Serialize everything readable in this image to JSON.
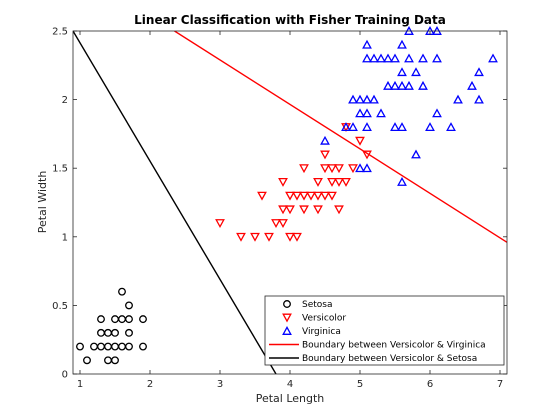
{
  "chart_data": {
    "type": "scatter",
    "title": "Linear Classification with Fisher Training Data",
    "xlabel": "Petal Length",
    "ylabel": "Petal Width",
    "xlim": [
      0.9,
      7.1
    ],
    "ylim": [
      0,
      2.5
    ],
    "xticks": [
      1,
      2,
      3,
      4,
      5,
      6,
      7
    ],
    "yticks": [
      0,
      0.5,
      1,
      1.5,
      2,
      2.5
    ],
    "xtick_labels": [
      "1",
      "2",
      "3",
      "4",
      "5",
      "6",
      "7"
    ],
    "ytick_labels": [
      "0",
      "0.5",
      "1",
      "1.5",
      "2",
      "2.5"
    ],
    "grid": false,
    "legend_position": "bottom-right",
    "series": [
      {
        "name": "Setosa",
        "marker": "circle",
        "color": "#000000",
        "points": [
          [
            1.0,
            0.2
          ],
          [
            1.1,
            0.1
          ],
          [
            1.2,
            0.2
          ],
          [
            1.3,
            0.2
          ],
          [
            1.3,
            0.3
          ],
          [
            1.3,
            0.4
          ],
          [
            1.4,
            0.1
          ],
          [
            1.4,
            0.2
          ],
          [
            1.4,
            0.3
          ],
          [
            1.5,
            0.1
          ],
          [
            1.5,
            0.2
          ],
          [
            1.5,
            0.3
          ],
          [
            1.5,
            0.4
          ],
          [
            1.6,
            0.2
          ],
          [
            1.6,
            0.4
          ],
          [
            1.6,
            0.6
          ],
          [
            1.7,
            0.2
          ],
          [
            1.7,
            0.3
          ],
          [
            1.7,
            0.4
          ],
          [
            1.7,
            0.5
          ],
          [
            1.9,
            0.2
          ],
          [
            1.9,
            0.4
          ]
        ]
      },
      {
        "name": "Versicolor",
        "marker": "triangle-down",
        "color": "#ff0000",
        "points": [
          [
            3.0,
            1.1
          ],
          [
            3.3,
            1.0
          ],
          [
            3.5,
            1.0
          ],
          [
            3.6,
            1.3
          ],
          [
            3.7,
            1.0
          ],
          [
            3.8,
            1.1
          ],
          [
            3.9,
            1.1
          ],
          [
            3.9,
            1.2
          ],
          [
            3.9,
            1.4
          ],
          [
            4.0,
            1.0
          ],
          [
            4.0,
            1.2
          ],
          [
            4.0,
            1.3
          ],
          [
            4.1,
            1.0
          ],
          [
            4.1,
            1.3
          ],
          [
            4.2,
            1.2
          ],
          [
            4.2,
            1.3
          ],
          [
            4.2,
            1.5
          ],
          [
            4.3,
            1.3
          ],
          [
            4.4,
            1.2
          ],
          [
            4.4,
            1.3
          ],
          [
            4.4,
            1.4
          ],
          [
            4.5,
            1.3
          ],
          [
            4.5,
            1.5
          ],
          [
            4.5,
            1.6
          ],
          [
            4.6,
            1.3
          ],
          [
            4.6,
            1.4
          ],
          [
            4.6,
            1.5
          ],
          [
            4.7,
            1.2
          ],
          [
            4.7,
            1.4
          ],
          [
            4.7,
            1.5
          ],
          [
            4.8,
            1.4
          ],
          [
            4.8,
            1.8
          ],
          [
            4.9,
            1.5
          ],
          [
            5.0,
            1.7
          ],
          [
            5.1,
            1.6
          ]
        ]
      },
      {
        "name": "Virginica",
        "marker": "triangle-up",
        "color": "#0000ff",
        "points": [
          [
            4.5,
            1.7
          ],
          [
            4.8,
            1.8
          ],
          [
            4.9,
            1.8
          ],
          [
            4.9,
            2.0
          ],
          [
            5.0,
            1.5
          ],
          [
            5.0,
            1.9
          ],
          [
            5.0,
            2.0
          ],
          [
            5.1,
            1.5
          ],
          [
            5.1,
            1.8
          ],
          [
            5.1,
            1.9
          ],
          [
            5.1,
            2.0
          ],
          [
            5.1,
            2.3
          ],
          [
            5.1,
            2.4
          ],
          [
            5.2,
            2.0
          ],
          [
            5.2,
            2.3
          ],
          [
            5.3,
            1.9
          ],
          [
            5.3,
            2.3
          ],
          [
            5.4,
            2.1
          ],
          [
            5.4,
            2.3
          ],
          [
            5.5,
            1.8
          ],
          [
            5.5,
            2.1
          ],
          [
            5.5,
            2.3
          ],
          [
            5.6,
            1.4
          ],
          [
            5.6,
            1.8
          ],
          [
            5.6,
            2.1
          ],
          [
            5.6,
            2.2
          ],
          [
            5.6,
            2.4
          ],
          [
            5.7,
            2.1
          ],
          [
            5.7,
            2.3
          ],
          [
            5.7,
            2.5
          ],
          [
            5.8,
            1.6
          ],
          [
            5.8,
            2.2
          ],
          [
            5.9,
            2.1
          ],
          [
            5.9,
            2.3
          ],
          [
            6.0,
            1.8
          ],
          [
            6.0,
            2.5
          ],
          [
            6.1,
            1.9
          ],
          [
            6.1,
            2.3
          ],
          [
            6.1,
            2.5
          ],
          [
            6.3,
            1.8
          ],
          [
            6.4,
            2.0
          ],
          [
            6.6,
            2.1
          ],
          [
            6.7,
            2.0
          ],
          [
            6.7,
            2.2
          ],
          [
            6.9,
            2.3
          ]
        ]
      }
    ],
    "boundaries": [
      {
        "name": "Boundary between Versicolor & Virginica",
        "color": "#ff0000",
        "points": [
          [
            2.35,
            2.5
          ],
          [
            7.1,
            0.96
          ]
        ]
      },
      {
        "name": "Boundary between Versicolor & Setosa",
        "color": "#000000",
        "points": [
          [
            0.9,
            2.5
          ],
          [
            3.8,
            0.0
          ]
        ]
      }
    ]
  }
}
